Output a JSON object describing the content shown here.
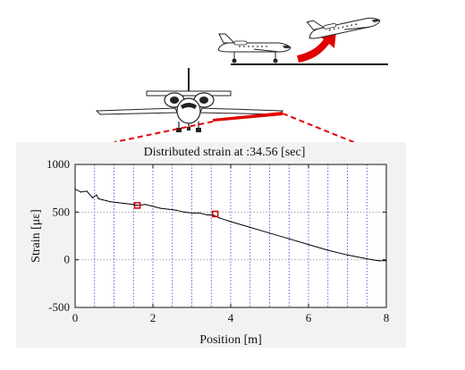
{
  "chart_data": {
    "type": "line",
    "title": "Distributed strain at :34.56 [sec]",
    "xlabel": "Position [m]",
    "ylabel": "Strain [με]",
    "xlim": [
      0,
      8
    ],
    "ylim": [
      -500,
      1000
    ],
    "xticks": [
      0,
      2,
      4,
      6,
      8
    ],
    "yticks": [
      -500,
      0,
      500,
      1000
    ],
    "grid": {
      "x_dotted_vertical": true,
      "y_dotted_horizontal": true
    },
    "series": [
      {
        "color": "#000000",
        "x": [
          0.0,
          0.15,
          0.3,
          0.45,
          0.55,
          0.6,
          0.7,
          0.9,
          1.1,
          1.3,
          1.5,
          1.6,
          1.8,
          2.0,
          2.2,
          2.4,
          2.6,
          2.8,
          3.0,
          3.2,
          3.4,
          3.55,
          3.7,
          4.0,
          4.5,
          5.0,
          5.5,
          6.0,
          6.5,
          7.0,
          7.5,
          7.8,
          8.0
        ],
        "y": [
          740,
          710,
          720,
          650,
          680,
          640,
          630,
          610,
          600,
          590,
          580,
          570,
          580,
          560,
          540,
          530,
          520,
          500,
          490,
          490,
          470,
          470,
          440,
          400,
          340,
          280,
          220,
          160,
          100,
          50,
          10,
          -10,
          -10
        ]
      }
    ],
    "markers": [
      {
        "x": 1.6,
        "y": 570,
        "shape": "square",
        "color": "#cc0000"
      },
      {
        "x": 3.6,
        "y": 480,
        "shape": "square",
        "color": "#cc0000"
      }
    ]
  },
  "colors": {
    "highlight": "#e00000",
    "grid_vertical": "#3a3adf",
    "grid_horizontal": "#9a9a9a",
    "panel_bg": "#f2f2f2"
  }
}
